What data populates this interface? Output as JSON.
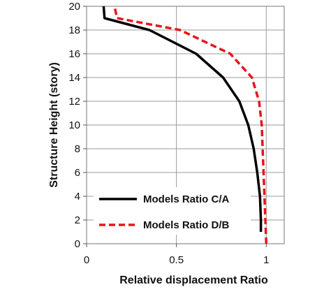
{
  "chart_data": {
    "type": "line",
    "xlabel": "Relative displacement Ratio",
    "ylabel": "Structure Height (story)",
    "xlim": [
      0,
      1.1
    ],
    "ylim": [
      0,
      20
    ],
    "x_ticks": [
      0,
      0.5,
      1
    ],
    "x_tick_labels": [
      "0",
      "0.5",
      "1"
    ],
    "y_ticks": [
      0,
      2,
      4,
      6,
      8,
      10,
      12,
      14,
      16,
      18,
      20
    ],
    "y_tick_labels": [
      "0",
      "2",
      "4",
      "6",
      "8",
      "10",
      "12",
      "14",
      "16",
      "18",
      "20"
    ],
    "grid": true,
    "legend_position": "bottom-left",
    "series": [
      {
        "name": "Models Ratio C/A",
        "color": "#000000",
        "dash": "solid",
        "points": [
          [
            0.97,
            1
          ],
          [
            0.97,
            2
          ],
          [
            0.965,
            4
          ],
          [
            0.95,
            6
          ],
          [
            0.93,
            8
          ],
          [
            0.9,
            10
          ],
          [
            0.85,
            12
          ],
          [
            0.76,
            14
          ],
          [
            0.61,
            16
          ],
          [
            0.35,
            18
          ],
          [
            0.1,
            19
          ],
          [
            0.095,
            20
          ]
        ]
      },
      {
        "name": "Models Ratio D/B",
        "color": "#e8141c",
        "dash": "dashed",
        "points": [
          [
            1.0,
            0
          ],
          [
            0.995,
            2
          ],
          [
            0.99,
            4
          ],
          [
            0.985,
            6
          ],
          [
            0.98,
            8
          ],
          [
            0.975,
            10
          ],
          [
            0.96,
            12
          ],
          [
            0.92,
            14
          ],
          [
            0.8,
            16
          ],
          [
            0.52,
            18
          ],
          [
            0.17,
            19
          ],
          [
            0.155,
            20
          ]
        ]
      }
    ]
  }
}
